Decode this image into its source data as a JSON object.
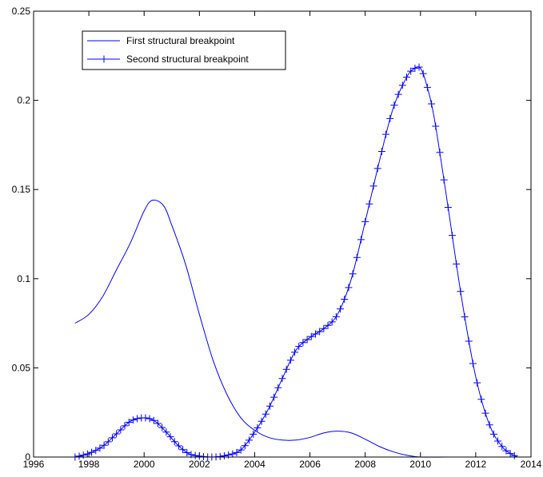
{
  "chart_data": {
    "type": "line",
    "title": "",
    "xlabel": "",
    "ylabel": "",
    "xlim": [
      1996,
      2014
    ],
    "ylim": [
      0,
      0.25
    ],
    "x_ticks": [
      1996,
      1998,
      2000,
      2002,
      2004,
      2006,
      2008,
      2010,
      2012,
      2014
    ],
    "y_ticks": [
      0,
      0.05,
      0.1,
      0.15,
      0.2,
      0.25
    ],
    "x_tick_labels": [
      "1996",
      "1998",
      "2000",
      "2002",
      "2004",
      "2006",
      "2008",
      "2010",
      "2012",
      "2014"
    ],
    "y_tick_labels": [
      "0",
      "0.05",
      "0.1",
      "0.15",
      "0.2",
      "0.25"
    ],
    "grid": false,
    "legend_position": "top-left",
    "colors": {
      "series": "#0000ff",
      "axes": "#000000",
      "background": "#ffffff"
    },
    "series": [
      {
        "name": "First structural breakpoint",
        "marker": "none",
        "x": [
          1997.5,
          1998.0,
          1998.5,
          1999.0,
          1999.5,
          2000.0,
          2000.3,
          2000.7,
          2001.0,
          2001.5,
          2002.0,
          2002.5,
          2003.0,
          2003.5,
          2004.0,
          2004.5,
          2005.0,
          2005.5,
          2006.0,
          2006.5,
          2007.0,
          2007.5,
          2008.0,
          2008.5,
          2009.0,
          2009.5,
          2010.0,
          2011.0,
          2012.0,
          2013.0,
          2013.5
        ],
        "values": [
          0.075,
          0.08,
          0.09,
          0.105,
          0.12,
          0.138,
          0.144,
          0.141,
          0.13,
          0.108,
          0.08,
          0.054,
          0.035,
          0.022,
          0.015,
          0.011,
          0.0095,
          0.0095,
          0.011,
          0.0135,
          0.0145,
          0.0135,
          0.01,
          0.006,
          0.003,
          0.001,
          0.0,
          0.0,
          0.0,
          0.0,
          0.0
        ]
      },
      {
        "name": "Second structural breakpoint",
        "marker": "+",
        "x": [
          1997.5,
          1998.0,
          1998.5,
          1999.0,
          1999.5,
          2000.0,
          2000.4,
          2000.8,
          2001.2,
          2001.6,
          2002.0,
          2002.5,
          2003.0,
          2003.5,
          2004.0,
          2004.5,
          2005.0,
          2005.5,
          2006.0,
          2006.5,
          2007.0,
          2007.5,
          2008.0,
          2008.5,
          2009.0,
          2009.5,
          2009.8,
          2010.0,
          2010.2,
          2010.5,
          2011.0,
          2011.5,
          2012.0,
          2012.5,
          2013.0,
          2013.5
        ],
        "values": [
          0.0,
          0.002,
          0.006,
          0.013,
          0.02,
          0.022,
          0.02,
          0.014,
          0.007,
          0.002,
          0.0005,
          0.0,
          0.001,
          0.004,
          0.014,
          0.027,
          0.044,
          0.06,
          0.067,
          0.072,
          0.08,
          0.1,
          0.132,
          0.165,
          0.195,
          0.213,
          0.218,
          0.218,
          0.21,
          0.19,
          0.14,
          0.088,
          0.045,
          0.018,
          0.005,
          0.0
        ]
      }
    ]
  }
}
